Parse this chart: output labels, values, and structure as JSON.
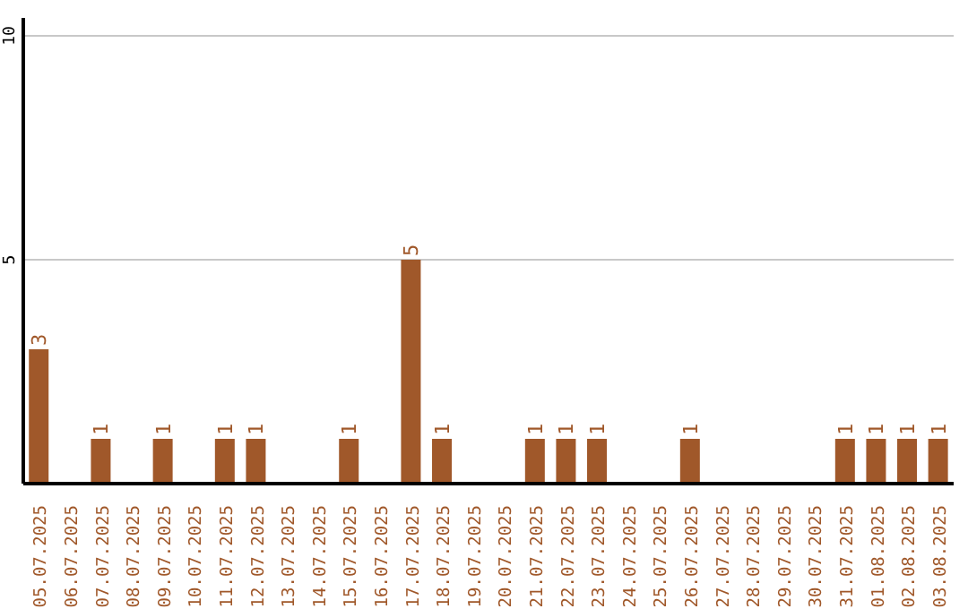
{
  "chart_data": {
    "type": "bar",
    "categories": [
      "05.07.2025",
      "06.07.2025",
      "07.07.2025",
      "08.07.2025",
      "09.07.2025",
      "10.07.2025",
      "11.07.2025",
      "12.07.2025",
      "13.07.2025",
      "14.07.2025",
      "15.07.2025",
      "16.07.2025",
      "17.07.2025",
      "18.07.2025",
      "19.07.2025",
      "20.07.2025",
      "21.07.2025",
      "22.07.2025",
      "23.07.2025",
      "24.07.2025",
      "25.07.2025",
      "26.07.2025",
      "27.07.2025",
      "28.07.2025",
      "29.07.2025",
      "30.07.2025",
      "31.07.2025",
      "01.08.2025",
      "02.08.2025",
      "03.08.2025"
    ],
    "values": [
      3,
      0,
      1,
      0,
      1,
      0,
      1,
      1,
      0,
      0,
      1,
      0,
      5,
      1,
      0,
      0,
      1,
      1,
      1,
      0,
      0,
      1,
      0,
      0,
      0,
      0,
      1,
      1,
      1,
      1
    ],
    "value_labels": [
      "3",
      null,
      "1",
      null,
      "1",
      null,
      "1",
      "1",
      null,
      null,
      "1",
      null,
      "5",
      "1",
      null,
      null,
      "1",
      "1",
      "1",
      null,
      null,
      "1",
      null,
      null,
      null,
      null,
      "1",
      "1",
      "1",
      "1"
    ],
    "color": "#a0582a",
    "ylim": [
      0,
      10.4
    ],
    "yticks": [
      5,
      10
    ],
    "grid": "y"
  }
}
